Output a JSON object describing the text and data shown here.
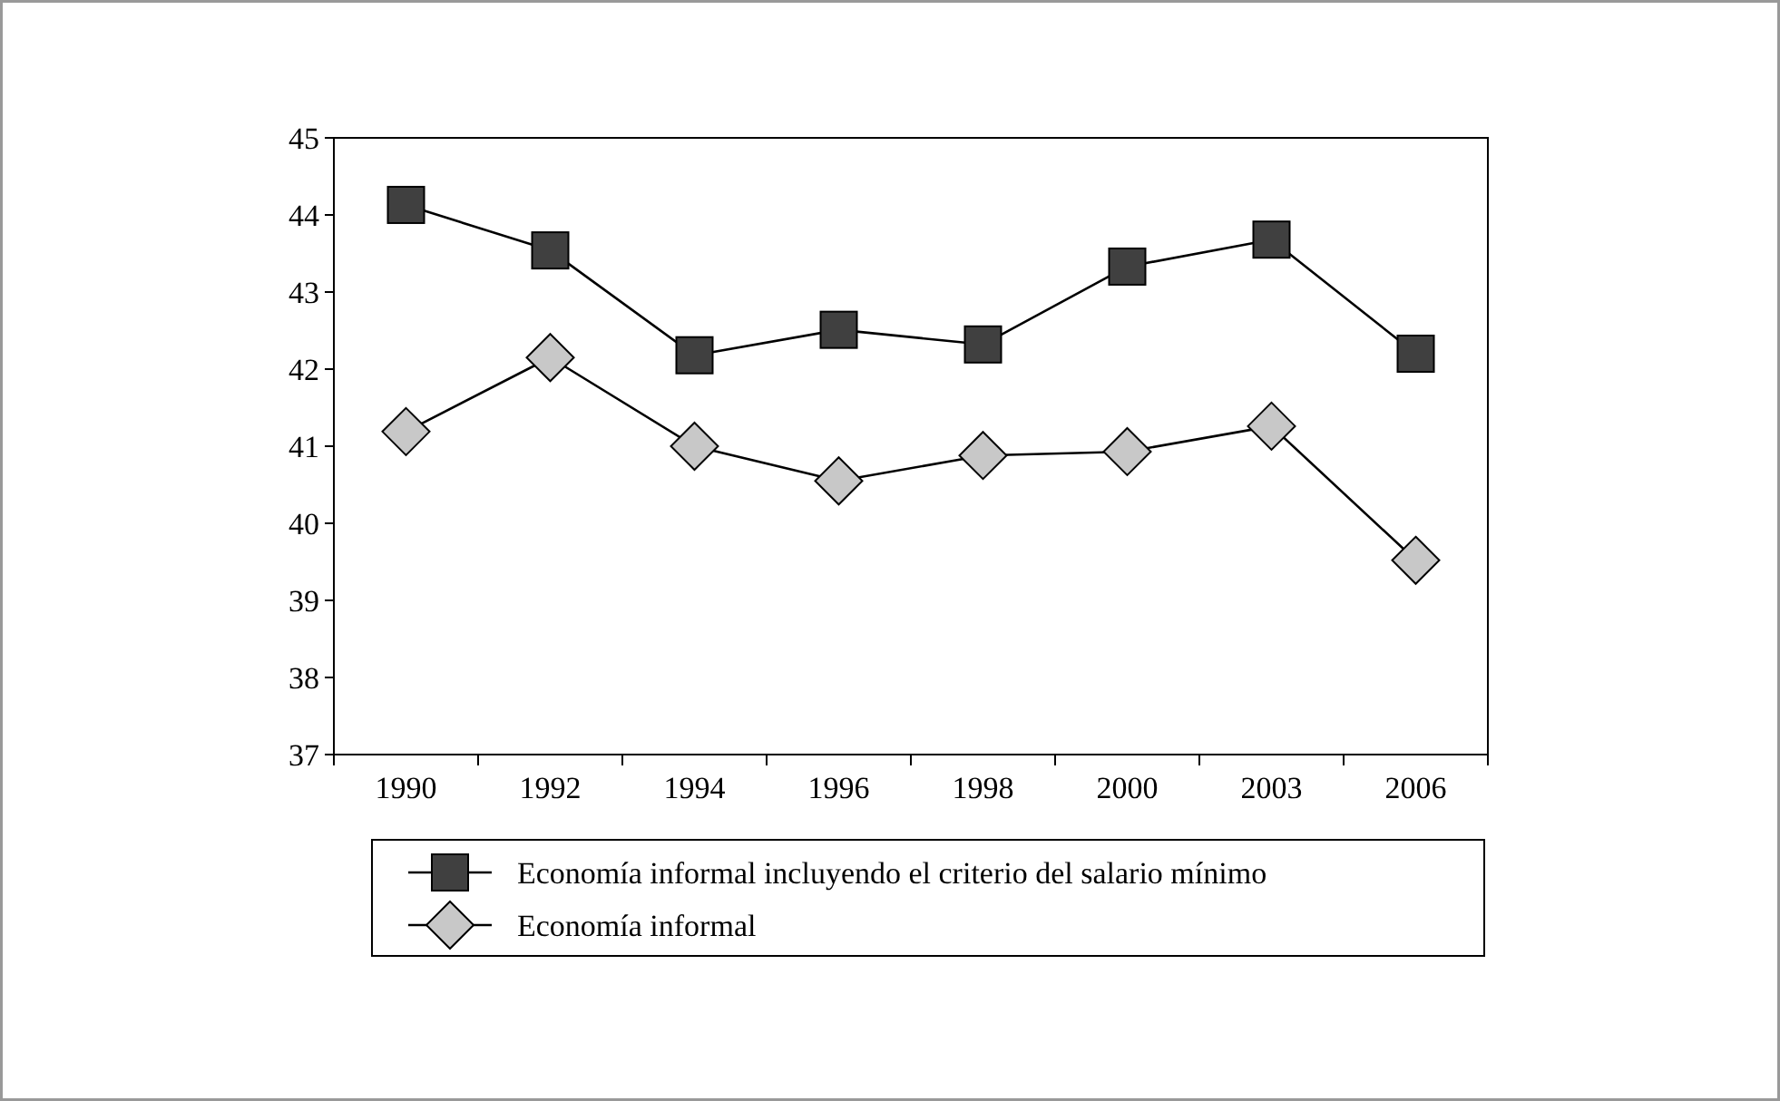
{
  "chart_data": {
    "type": "line",
    "categories": [
      "1990",
      "1992",
      "1994",
      "1996",
      "1998",
      "2000",
      "2003",
      "2006"
    ],
    "series": [
      {
        "name": "Economía informal incluyendo el criterio del salario mínimo",
        "color": "#404040",
        "marker": "square",
        "values": [
          44.13,
          43.54,
          42.18,
          42.51,
          42.32,
          43.33,
          43.68,
          42.2
        ]
      },
      {
        "name": "Economía informal",
        "color": "#c8c8c8",
        "marker": "diamond",
        "values": [
          41.19,
          42.15,
          41.0,
          40.55,
          40.88,
          40.93,
          41.26,
          39.52
        ]
      }
    ],
    "ylim": [
      37,
      45
    ],
    "yticks": [
      37,
      38,
      39,
      40,
      41,
      42,
      43,
      44,
      45
    ],
    "grid": false,
    "legend": "bottom"
  }
}
